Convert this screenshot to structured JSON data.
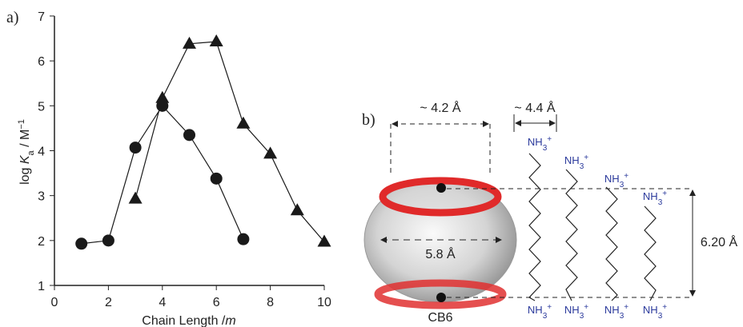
{
  "chart_data": {
    "type": "line",
    "panel_label": "a)",
    "xlabel": [
      "Chain Length /",
      "m"
    ],
    "ylabel": [
      "log ",
      "K",
      "a",
      " / M",
      "−1"
    ],
    "xlim": [
      0,
      10
    ],
    "xticks": [
      0,
      2,
      4,
      6,
      8,
      10
    ],
    "ylim": [
      1,
      7
    ],
    "yticks": [
      1,
      2,
      3,
      4,
      5,
      6,
      7
    ],
    "series": [
      {
        "marker": "circle",
        "color": "#1a1a1a",
        "x": [
          1,
          2,
          3,
          4,
          5,
          6,
          7
        ],
        "values": [
          1.93,
          2.0,
          4.07,
          5.0,
          4.35,
          3.38,
          2.03
        ]
      },
      {
        "marker": "triangle",
        "color": "#1a1a1a",
        "x": [
          3,
          4,
          5,
          6,
          7,
          8,
          9,
          10
        ],
        "values": [
          2.93,
          5.17,
          6.38,
          6.43,
          4.6,
          3.93,
          2.67,
          1.97
        ]
      }
    ]
  },
  "diagram": {
    "panel_label": "b)",
    "rim_width": "~ 4.2 Å",
    "chain_width": "~ 4.4 Å",
    "cavity_width": "5.8 Å",
    "height": "6.20 Å",
    "host": "CB6",
    "chains": [
      {
        "top": [
          "NH",
          "3",
          "+"
        ],
        "bottom": [
          "NH",
          "3",
          "+"
        ]
      },
      {
        "top": [
          "NH",
          "3",
          "+"
        ],
        "bottom": [
          "NH",
          "3",
          "+"
        ]
      },
      {
        "top": [
          "NH",
          "3",
          "+"
        ],
        "bottom": [
          "NH",
          "3",
          "+"
        ]
      },
      {
        "top": [
          "NH",
          "3",
          "+"
        ],
        "bottom": [
          "NH",
          "3",
          "+"
        ]
      }
    ]
  }
}
